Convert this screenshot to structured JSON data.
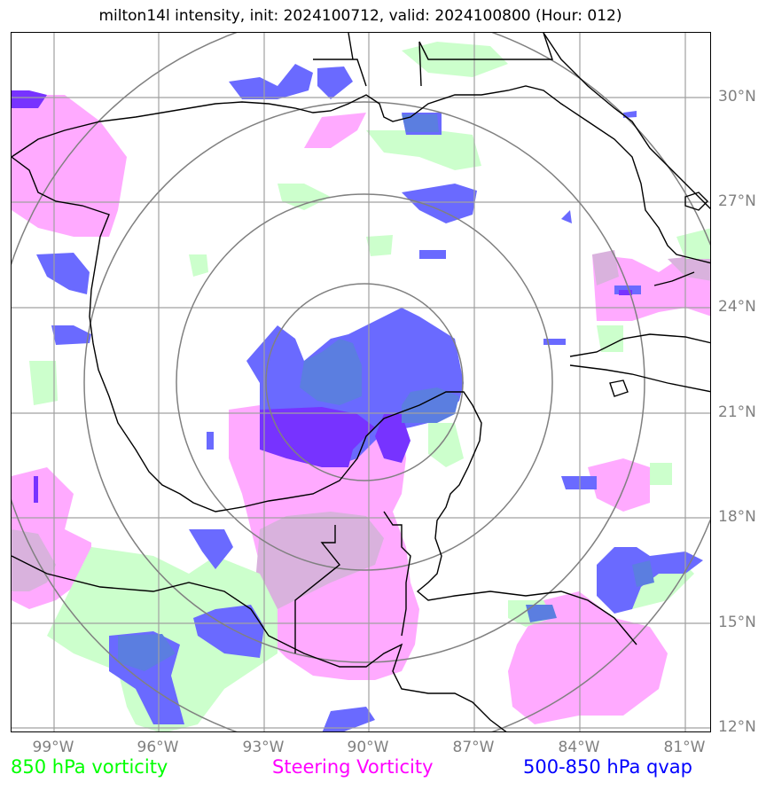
{
  "title": "milton14l intensity, init: 2024100712, valid: 2024100800 (Hour: 012)",
  "lat_ticks": [
    "30°N",
    "27°N",
    "24°N",
    "21°N",
    "18°N",
    "15°N",
    "12°N"
  ],
  "lon_ticks": [
    "99°W",
    "96°W",
    "93°W",
    "90°W",
    "87°W",
    "84°W",
    "81°W"
  ],
  "legend": [
    {
      "label": "850 hPa vorticity",
      "color": "#00ff00"
    },
    {
      "label": "Steering Vorticity",
      "color": "#ff00ff"
    },
    {
      "label": "500-850 hPa qvap",
      "color": "#0000ff"
    }
  ],
  "colors": {
    "vorticity_850": "#ccffcc",
    "steering_vorticity": "#ffaaff",
    "qvap": "#6666ff",
    "qvap_dark": "#7733ff",
    "gridlines": "#a0a0a0",
    "range_rings": "#808080",
    "coastline": "#000000"
  },
  "map": {
    "projection": "lat-lon",
    "lon_range": [
      "100.3°W",
      "80.4°W"
    ],
    "lat_range": [
      "11.9°N",
      "31.9°N"
    ],
    "storm_center": "20.5°N, 90.2°W",
    "range_rings": 4
  }
}
